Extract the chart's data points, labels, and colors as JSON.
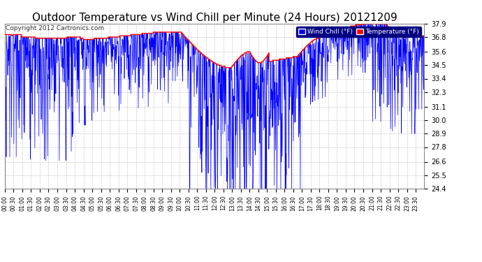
{
  "title": "Outdoor Temperature vs Wind Chill per Minute (24 Hours) 20121209",
  "copyright": "Copyright 2012 Cartronics.com",
  "legend_wind_chill": "Wind Chill (°F)",
  "legend_temperature": "Temperature (°F)",
  "ylim": [
    24.4,
    37.9
  ],
  "yticks": [
    24.4,
    25.5,
    26.6,
    27.8,
    28.9,
    30.0,
    31.1,
    32.3,
    33.4,
    34.5,
    35.6,
    36.8,
    37.9
  ],
  "background_color": "#ffffff",
  "plot_bg_color": "#ffffff",
  "grid_color": "#bbbbbb",
  "wind_chill_color": "#0000ff",
  "temperature_color": "#ff0000",
  "title_fontsize": 11,
  "n_minutes": 1440,
  "x_tick_interval": 30
}
